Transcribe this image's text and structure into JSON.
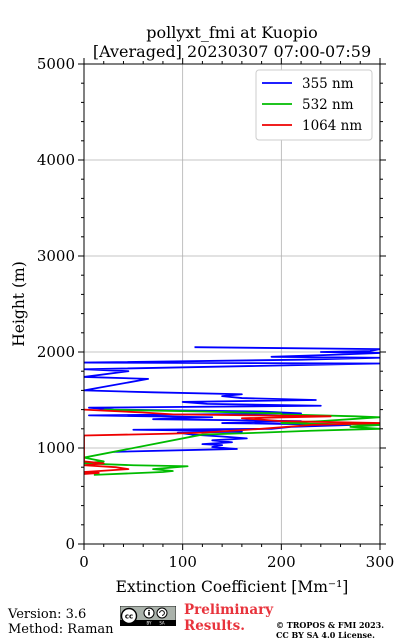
{
  "figure": {
    "title_line1": "pollyxt_fmi at Kuopio",
    "title_line2": "[Averaged] 20230307 07:00-07:59"
  },
  "footer": {
    "version": "Version: 3.6",
    "method": "Method: Raman",
    "preliminary_line1": "Preliminary",
    "preliminary_line2": "Results.",
    "license_line1": "© TROPOS & FMI 2023.",
    "license_line2": "CC BY SA 4.0 License.",
    "badge_icon": "cc-by-sa-icon"
  },
  "chart_data": {
    "type": "line",
    "xlabel": "Extinction Coefficient [Mm⁻¹]",
    "ylabel": "Height (m)",
    "xlim": [
      0,
      300
    ],
    "ylim": [
      0,
      5000
    ],
    "xticks": [
      0,
      100,
      200,
      300
    ],
    "yticks": [
      0,
      1000,
      2000,
      3000,
      4000,
      5000
    ],
    "grid": true,
    "legend_position": "top-right",
    "series": [
      {
        "name": "355 nm",
        "color": "#0000ff",
        "points": [
          [
            30,
            960
          ],
          [
            155,
            990
          ],
          [
            130,
            1010
          ],
          [
            140,
            1030
          ],
          [
            120,
            1040
          ],
          [
            150,
            1060
          ],
          [
            130,
            1080
          ],
          [
            165,
            1100
          ],
          [
            140,
            1120
          ],
          [
            110,
            1140
          ],
          [
            95,
            1160
          ],
          [
            160,
            1170
          ],
          [
            130,
            1180
          ],
          [
            50,
            1190
          ],
          [
            190,
            1200
          ],
          [
            210,
            1220
          ],
          [
            270,
            1240
          ],
          [
            140,
            1260
          ],
          [
            220,
            1280
          ],
          [
            70,
            1300
          ],
          [
            130,
            1320
          ],
          [
            5,
            1340
          ],
          [
            220,
            1360
          ],
          [
            180,
            1380
          ],
          [
            30,
            1400
          ],
          [
            5,
            1420
          ],
          [
            240,
            1440
          ],
          [
            125,
            1460
          ],
          [
            100,
            1480
          ],
          [
            235,
            1500
          ],
          [
            160,
            1520
          ],
          [
            140,
            1540
          ],
          [
            160,
            1560
          ],
          [
            70,
            1580
          ],
          [
            0,
            1600
          ],
          [
            65,
            1720
          ],
          [
            0,
            1740
          ],
          [
            45,
            1800
          ],
          [
            0,
            1820
          ],
          [
            300,
            1880
          ],
          [
            0,
            1890
          ],
          [
            220,
            1920
          ],
          [
            300,
            1940
          ],
          [
            190,
            1950
          ],
          [
            250,
            1970
          ],
          [
            300,
            1990
          ],
          [
            240,
            2000
          ],
          [
            290,
            2010
          ],
          [
            300,
            2030
          ],
          [
            112,
            2050
          ]
        ]
      },
      {
        "name": "532 nm",
        "color": "#00bb00",
        "points": [
          [
            10,
            720
          ],
          [
            80,
            750
          ],
          [
            90,
            760
          ],
          [
            70,
            780
          ],
          [
            105,
            810
          ],
          [
            50,
            820
          ],
          [
            0,
            840
          ],
          [
            20,
            860
          ],
          [
            0,
            900
          ],
          [
            120,
            1140
          ],
          [
            180,
            1160
          ],
          [
            230,
            1180
          ],
          [
            300,
            1200
          ],
          [
            270,
            1220
          ],
          [
            300,
            1240
          ],
          [
            200,
            1260
          ],
          [
            240,
            1280
          ],
          [
            270,
            1300
          ],
          [
            300,
            1320
          ],
          [
            275,
            1330
          ],
          [
            200,
            1350
          ],
          [
            200,
            1360
          ],
          [
            120,
            1380
          ],
          [
            20,
            1400
          ]
        ]
      },
      {
        "name": "1064 nm",
        "color": "#ee0000",
        "points": [
          [
            0,
            730
          ],
          [
            15,
            740
          ],
          [
            0,
            750
          ],
          [
            45,
            780
          ],
          [
            32,
            800
          ],
          [
            0,
            820
          ],
          [
            20,
            840
          ],
          [
            0,
            860
          ],
          [
            0,
            1130
          ],
          [
            90,
            1150
          ],
          [
            120,
            1160
          ],
          [
            180,
            1200
          ],
          [
            230,
            1240
          ],
          [
            300,
            1260
          ],
          [
            200,
            1280
          ],
          [
            160,
            1310
          ],
          [
            250,
            1330
          ],
          [
            90,
            1350
          ],
          [
            60,
            1370
          ],
          [
            20,
            1390
          ],
          [
            0,
            1400
          ]
        ]
      }
    ]
  }
}
